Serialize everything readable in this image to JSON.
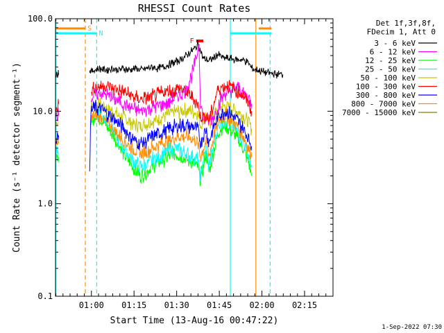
{
  "chart_data": {
    "type": "line",
    "title": "RHESSI Count Rates",
    "xlabel": "Start Time (13-Aug-16 00:47:22)",
    "ylabel": "Count Rate (s⁻¹ detector segment⁻¹)",
    "yscale": "log",
    "ylim": [
      0.1,
      100.0
    ],
    "xlim": [
      "00:47:22",
      "02:25:00"
    ],
    "x_ticks": [
      "01:00",
      "01:15",
      "01:30",
      "01:45",
      "02:00",
      "02:15"
    ],
    "y_ticks": [
      "0.1",
      "1.0",
      "10.0",
      "100.0"
    ],
    "legend_title": [
      "Det 1f,3f,8f,",
      "FDecim 1, Att 0"
    ],
    "legend_position": "right",
    "series": [
      {
        "name": "3 - 6 keV",
        "color": "#000000",
        "values": [
          [
            0.2,
            24
          ],
          [
            0.4,
            25
          ],
          [
            0.6,
            26
          ],
          [
            0.8,
            25
          ],
          [
            1.0,
            27
          ],
          [
            1.1,
            26
          ],
          [
            12.0,
            27
          ],
          [
            14,
            28
          ],
          [
            16,
            29
          ],
          [
            18,
            28
          ],
          [
            20,
            29
          ],
          [
            22,
            28
          ],
          [
            24,
            29
          ],
          [
            26,
            28
          ],
          [
            28,
            29
          ],
          [
            30,
            28
          ],
          [
            32,
            29
          ],
          [
            34,
            30
          ],
          [
            36,
            29
          ],
          [
            38,
            30
          ],
          [
            40,
            32
          ],
          [
            42,
            34
          ],
          [
            44,
            36
          ],
          [
            46,
            40
          ],
          [
            48,
            45
          ],
          [
            49.5,
            49
          ],
          [
            50.2,
            54
          ],
          [
            52,
            37
          ],
          [
            54,
            35
          ],
          [
            56,
            38
          ],
          [
            57,
            41
          ],
          [
            59,
            38
          ],
          [
            61,
            37
          ],
          [
            64,
            36
          ],
          [
            66,
            36
          ],
          [
            68,
            33
          ],
          [
            69,
            29
          ],
          [
            72,
            27
          ],
          [
            75,
            26
          ],
          [
            78,
            25
          ],
          [
            80,
            25
          ]
        ]
      },
      {
        "name": "6 - 12 keV",
        "color": "#ff00ff",
        "values": [
          [
            0.2,
            9
          ],
          [
            0.5,
            10
          ],
          [
            0.8,
            9
          ],
          [
            1.1,
            9
          ],
          [
            12.5,
            14
          ],
          [
            14,
            15
          ],
          [
            16,
            16
          ],
          [
            18,
            15
          ],
          [
            20,
            14
          ],
          [
            22,
            13
          ],
          [
            24,
            12
          ],
          [
            26,
            11
          ],
          [
            28,
            10.5
          ],
          [
            30,
            10
          ],
          [
            32,
            10.5
          ],
          [
            34,
            11
          ],
          [
            36,
            11.5
          ],
          [
            38,
            12
          ],
          [
            40,
            12.5
          ],
          [
            42,
            14
          ],
          [
            44,
            15
          ],
          [
            46,
            17
          ],
          [
            48,
            25
          ],
          [
            49.5,
            37
          ],
          [
            50.5,
            55
          ],
          [
            51,
            12
          ],
          [
            52,
            9
          ],
          [
            54,
            8
          ],
          [
            56,
            9
          ],
          [
            57,
            11
          ],
          [
            58,
            13
          ],
          [
            60,
            16
          ],
          [
            62,
            17
          ],
          [
            64,
            18
          ],
          [
            66,
            16
          ],
          [
            68,
            14
          ],
          [
            69,
            12
          ]
        ]
      },
      {
        "name": "12 - 25 keV",
        "color": "#00ff00",
        "values": [
          [
            0.2,
            3
          ],
          [
            0.5,
            3.5
          ],
          [
            0.8,
            3
          ],
          [
            1.1,
            3.2
          ],
          [
            12.5,
            8
          ],
          [
            14,
            9
          ],
          [
            16,
            8
          ],
          [
            18,
            7
          ],
          [
            20,
            5.5
          ],
          [
            22,
            4.5
          ],
          [
            24,
            3.5
          ],
          [
            26,
            2.8
          ],
          [
            28,
            2.3
          ],
          [
            30,
            2.0
          ],
          [
            32,
            2.2
          ],
          [
            34,
            2.5
          ],
          [
            36,
            2.8
          ],
          [
            38,
            3.0
          ],
          [
            40,
            3.3
          ],
          [
            42,
            3.5
          ],
          [
            44,
            3.3
          ],
          [
            46,
            3.0
          ],
          [
            48,
            2.8
          ],
          [
            50,
            2.5
          ],
          [
            51,
            1.8
          ],
          [
            52,
            2.5
          ],
          [
            53,
            3.5
          ],
          [
            54,
            2.2
          ],
          [
            55,
            3.0
          ],
          [
            57,
            5.5
          ],
          [
            58,
            6.5
          ],
          [
            60,
            7
          ],
          [
            62,
            6
          ],
          [
            64,
            5
          ],
          [
            66,
            4
          ],
          [
            68,
            2.8
          ],
          [
            69,
            2.0
          ]
        ]
      },
      {
        "name": "25 - 50 keV",
        "color": "#00ffff",
        "values": [
          [
            0.2,
            3.2
          ],
          [
            0.5,
            3.8
          ],
          [
            0.8,
            3.5
          ],
          [
            1.1,
            3.5
          ],
          [
            12.5,
            9
          ],
          [
            14,
            10
          ],
          [
            16,
            9
          ],
          [
            18,
            8
          ],
          [
            20,
            6.5
          ],
          [
            22,
            5
          ],
          [
            24,
            4
          ],
          [
            26,
            3.3
          ],
          [
            28,
            2.8
          ],
          [
            30,
            2.5
          ],
          [
            32,
            2.7
          ],
          [
            34,
            3.0
          ],
          [
            36,
            3.2
          ],
          [
            38,
            3.5
          ],
          [
            40,
            3.8
          ],
          [
            42,
            4.0
          ],
          [
            44,
            3.8
          ],
          [
            46,
            3.5
          ],
          [
            48,
            3.2
          ],
          [
            50,
            3.0
          ],
          [
            51,
            2.0
          ],
          [
            52,
            3.0
          ],
          [
            53,
            4.0
          ],
          [
            54,
            2.5
          ],
          [
            55,
            3.5
          ],
          [
            57,
            6.5
          ],
          [
            58,
            7.5
          ],
          [
            60,
            8
          ],
          [
            62,
            7
          ],
          [
            64,
            6
          ],
          [
            66,
            4.8
          ],
          [
            68,
            3.2
          ],
          [
            69,
            2.5
          ]
        ]
      },
      {
        "name": "50 - 100 keV",
        "color": "#c8c800",
        "values": [
          [
            0.2,
            7
          ],
          [
            0.5,
            8
          ],
          [
            0.8,
            7.5
          ],
          [
            1.1,
            7.5
          ],
          [
            12.5,
            11
          ],
          [
            14,
            12
          ],
          [
            16,
            11.5
          ],
          [
            18,
            11
          ],
          [
            20,
            10
          ],
          [
            22,
            9
          ],
          [
            24,
            8.5
          ],
          [
            26,
            7.8
          ],
          [
            28,
            7.2
          ],
          [
            30,
            7
          ],
          [
            32,
            7.3
          ],
          [
            34,
            7.8
          ],
          [
            36,
            8.3
          ],
          [
            38,
            8.8
          ],
          [
            40,
            9.3
          ],
          [
            42,
            9.8
          ],
          [
            44,
            10
          ],
          [
            46,
            10.3
          ],
          [
            48,
            10
          ],
          [
            50,
            9.5
          ],
          [
            51,
            7
          ],
          [
            52,
            8
          ],
          [
            53,
            9
          ],
          [
            54,
            7
          ],
          [
            55,
            8.5
          ],
          [
            57,
            10
          ],
          [
            58,
            11
          ],
          [
            60,
            11.5
          ],
          [
            62,
            11
          ],
          [
            64,
            10
          ],
          [
            66,
            9
          ],
          [
            68,
            7.5
          ],
          [
            69,
            6.5
          ]
        ]
      },
      {
        "name": "100 - 300 keV",
        "color": "#ff0000",
        "values": [
          [
            0.2,
            11
          ],
          [
            0.5,
            12
          ],
          [
            0.8,
            11
          ],
          [
            1.1,
            12
          ],
          [
            12.5,
            16
          ],
          [
            14,
            18
          ],
          [
            16,
            19
          ],
          [
            18,
            18.5
          ],
          [
            20,
            18
          ],
          [
            22,
            17
          ],
          [
            24,
            16
          ],
          [
            26,
            15
          ],
          [
            28,
            14
          ],
          [
            30,
            13.5
          ],
          [
            32,
            13.8
          ],
          [
            34,
            14.5
          ],
          [
            36,
            15
          ],
          [
            38,
            16
          ],
          [
            40,
            16.5
          ],
          [
            42,
            17
          ],
          [
            44,
            17.5
          ],
          [
            46,
            16.5
          ],
          [
            48,
            14
          ],
          [
            50,
            12
          ],
          [
            51,
            9
          ],
          [
            52,
            8.5
          ],
          [
            53,
            9
          ],
          [
            54,
            8
          ],
          [
            55,
            10
          ],
          [
            57,
            17
          ],
          [
            58,
            18
          ],
          [
            60,
            19
          ],
          [
            62,
            18
          ],
          [
            64,
            16
          ],
          [
            66,
            15
          ],
          [
            68,
            12
          ],
          [
            69,
            10
          ]
        ]
      },
      {
        "name": "300 - 800 keV",
        "color": "#0000ff",
        "values": [
          [
            0.2,
            5
          ],
          [
            0.5,
            5.5
          ],
          [
            0.8,
            5
          ],
          [
            1.1,
            5.5
          ],
          [
            12.0,
            2.5
          ],
          [
            12.5,
            10
          ],
          [
            14,
            11
          ],
          [
            16,
            10.5
          ],
          [
            18,
            9.5
          ],
          [
            20,
            8.5
          ],
          [
            22,
            7.5
          ],
          [
            24,
            6.5
          ],
          [
            26,
            5.5
          ],
          [
            28,
            4.8
          ],
          [
            30,
            4.5
          ],
          [
            32,
            4.8
          ],
          [
            34,
            5.2
          ],
          [
            36,
            5.6
          ],
          [
            38,
            6
          ],
          [
            40,
            6.4
          ],
          [
            42,
            6.8
          ],
          [
            44,
            7
          ],
          [
            46,
            7
          ],
          [
            48,
            6.8
          ],
          [
            50,
            6.5
          ],
          [
            51,
            4.5
          ],
          [
            52,
            5.5
          ],
          [
            53,
            6.5
          ],
          [
            54,
            4.5
          ],
          [
            55,
            6
          ],
          [
            57,
            8.5
          ],
          [
            58,
            9.5
          ],
          [
            60,
            10
          ],
          [
            62,
            9
          ],
          [
            64,
            8
          ],
          [
            66,
            6.5
          ],
          [
            68,
            5
          ],
          [
            69,
            4.2
          ]
        ]
      },
      {
        "name": "800 - 7000 keV",
        "color": "#ff8c00",
        "values": [
          [
            0.2,
            4
          ],
          [
            0.5,
            4.5
          ],
          [
            0.8,
            4.2
          ],
          [
            1.1,
            4.5
          ],
          [
            12.5,
            8
          ],
          [
            14,
            9
          ],
          [
            16,
            8.5
          ],
          [
            18,
            7.5
          ],
          [
            20,
            6.5
          ],
          [
            22,
            5.5
          ],
          [
            24,
            4.8
          ],
          [
            26,
            4.2
          ],
          [
            28,
            3.8
          ],
          [
            30,
            3.5
          ],
          [
            32,
            3.7
          ],
          [
            34,
            4.0
          ],
          [
            36,
            4.3
          ],
          [
            38,
            4.6
          ],
          [
            40,
            4.9
          ],
          [
            42,
            5.2
          ],
          [
            44,
            5.4
          ],
          [
            46,
            5.3
          ],
          [
            48,
            5.0
          ],
          [
            50,
            4.7
          ],
          [
            51,
            3.2
          ],
          [
            52,
            4.0
          ],
          [
            53,
            4.8
          ],
          [
            54,
            3.3
          ],
          [
            55,
            4.4
          ],
          [
            57,
            7.5
          ],
          [
            58,
            8.5
          ],
          [
            60,
            9
          ],
          [
            62,
            8
          ],
          [
            64,
            6.8
          ],
          [
            66,
            5.5
          ],
          [
            68,
            4
          ],
          [
            69,
            3.2
          ]
        ]
      },
      {
        "name": "7000 - 15000 keV",
        "color": "#808000",
        "values": []
      }
    ],
    "time_markers": [
      {
        "label": "S",
        "color": "#ff8c00",
        "x_min": 10.5
      },
      {
        "label": "N",
        "color": "#00ffff",
        "x_min": 14.5
      },
      {
        "label": "F",
        "color": "#ff0000",
        "x_min": 49.5
      }
    ],
    "footer": "1-Sep-2022 07:30"
  }
}
